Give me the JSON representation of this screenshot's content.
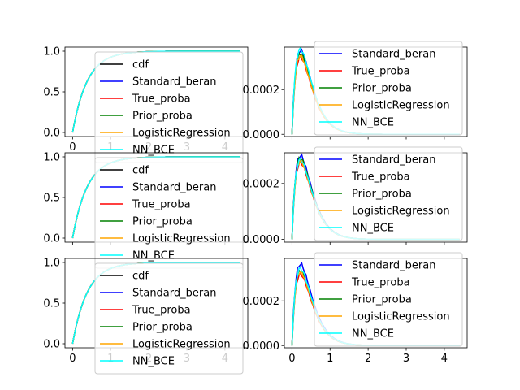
{
  "figure": {
    "width": 640,
    "height": 480
  },
  "chart_data": [
    {
      "type": "line",
      "panel": "cdf-row-1",
      "xlim": [
        -0.2,
        4.6
      ],
      "ylim": [
        -0.05,
        1.05
      ],
      "xticks": [
        "0",
        "1",
        "2",
        "3",
        "4"
      ],
      "yticks": [
        "0.0",
        "0.5",
        "1.0"
      ],
      "shape": "cdf",
      "legend_placement": "lower-right",
      "series": [
        {
          "name": "cdf",
          "color": "#000000",
          "peak": 1.0
        },
        {
          "name": "Standard_beran",
          "color": "#0000ff",
          "peak": 1.0
        },
        {
          "name": "True_proba",
          "color": "#ff0000",
          "peak": 1.0
        },
        {
          "name": "Prior_proba",
          "color": "#008000",
          "peak": 1.0
        },
        {
          "name": "LogisticRegression",
          "color": "#ffa500",
          "peak": 1.0
        },
        {
          "name": "NN_BCE",
          "color": "#00ffff",
          "peak": 1.0
        }
      ]
    },
    {
      "type": "line",
      "panel": "pdf-row-1",
      "xlim": [
        -0.2,
        4.6
      ],
      "ylim": [
        -1e-05,
        0.00039
      ],
      "xticks": [],
      "yticks": [
        "0.0000",
        "0.0002"
      ],
      "shape": "density",
      "legend_placement": "upper-right",
      "series": [
        {
          "name": "Standard_beran",
          "color": "#0000ff",
          "peak": 0.000375
        },
        {
          "name": "True_proba",
          "color": "#ff0000",
          "peak": 0.000345
        },
        {
          "name": "Prior_proba",
          "color": "#008000",
          "peak": 0.00036
        },
        {
          "name": "LogisticRegression",
          "color": "#ffa500",
          "peak": 0.00035
        },
        {
          "name": "NN_BCE",
          "color": "#00ffff",
          "peak": 0.00038
        }
      ]
    },
    {
      "type": "line",
      "panel": "cdf-row-2",
      "xlim": [
        -0.2,
        4.6
      ],
      "ylim": [
        -0.05,
        1.05
      ],
      "xticks": [],
      "yticks": [
        "0.0",
        "0.5",
        "1.0"
      ],
      "shape": "cdf",
      "legend_placement": "lower-right",
      "series": [
        {
          "name": "cdf",
          "color": "#000000",
          "peak": 1.0
        },
        {
          "name": "Standard_beran",
          "color": "#0000ff",
          "peak": 1.0
        },
        {
          "name": "True_proba",
          "color": "#ff0000",
          "peak": 1.0
        },
        {
          "name": "Prior_proba",
          "color": "#008000",
          "peak": 1.0
        },
        {
          "name": "LogisticRegression",
          "color": "#ffa500",
          "peak": 1.0
        },
        {
          "name": "NN_BCE",
          "color": "#00ffff",
          "peak": 1.0
        }
      ]
    },
    {
      "type": "line",
      "panel": "pdf-row-2",
      "xlim": [
        -0.2,
        4.6
      ],
      "ylim": [
        -1e-05,
        0.00031
      ],
      "xticks": [],
      "yticks": [
        "0.0000",
        "0.0002"
      ],
      "shape": "density",
      "legend_placement": "upper-right",
      "series": [
        {
          "name": "Standard_beran",
          "color": "#0000ff",
          "peak": 0.0003
        },
        {
          "name": "True_proba",
          "color": "#ff0000",
          "peak": 0.000275
        },
        {
          "name": "Prior_proba",
          "color": "#008000",
          "peak": 0.00029
        },
        {
          "name": "LogisticRegression",
          "color": "#ffa500",
          "peak": 0.00028
        },
        {
          "name": "NN_BCE",
          "color": "#00ffff",
          "peak": 0.000285
        }
      ]
    },
    {
      "type": "line",
      "panel": "cdf-row-3",
      "xlim": [
        -0.2,
        4.6
      ],
      "ylim": [
        -0.05,
        1.05
      ],
      "xticks": [
        "0",
        "1",
        "2",
        "3",
        "4"
      ],
      "yticks": [
        "0.0",
        "0.5",
        "1.0"
      ],
      "shape": "cdf",
      "legend_placement": "lower-right",
      "series": [
        {
          "name": "cdf",
          "color": "#000000",
          "peak": 1.0
        },
        {
          "name": "Standard_beran",
          "color": "#0000ff",
          "peak": 1.0
        },
        {
          "name": "True_proba",
          "color": "#ff0000",
          "peak": 1.0
        },
        {
          "name": "Prior_proba",
          "color": "#008000",
          "peak": 1.0
        },
        {
          "name": "LogisticRegression",
          "color": "#ffa500",
          "peak": 1.0
        },
        {
          "name": "NN_BCE",
          "color": "#00ffff",
          "peak": 1.0
        }
      ]
    },
    {
      "type": "line",
      "panel": "pdf-row-3",
      "xlim": [
        -0.2,
        4.6
      ],
      "ylim": [
        -1e-05,
        0.00039
      ],
      "xticks": [
        "0",
        "1",
        "2",
        "3",
        "4"
      ],
      "yticks": [
        "0.0000",
        "0.0002"
      ],
      "shape": "density",
      "legend_placement": "upper-right",
      "series": [
        {
          "name": "Standard_beran",
          "color": "#0000ff",
          "peak": 0.000365
        },
        {
          "name": "True_proba",
          "color": "#ff0000",
          "peak": 0.00032
        },
        {
          "name": "Prior_proba",
          "color": "#008000",
          "peak": 0.000335
        },
        {
          "name": "LogisticRegression",
          "color": "#ffa500",
          "peak": 0.00033
        },
        {
          "name": "NN_BCE",
          "color": "#00ffff",
          "peak": 0.000345
        }
      ]
    }
  ]
}
